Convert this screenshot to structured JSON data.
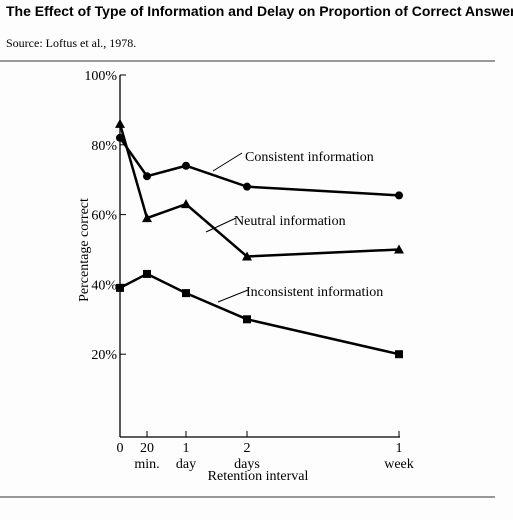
{
  "chart_data": {
    "type": "line",
    "title": "The Effect of Type of Information and Delay on Proportion of Correct Answers.",
    "subtitle": "Source: Loftus et al., 1978.",
    "x_label": "Retention interval",
    "y_label": "Percentage correct",
    "categories": [
      "0",
      "20 min.",
      "1 day",
      "2 days",
      "1 week"
    ],
    "ylim": [
      0,
      100
    ],
    "yticks": [
      {
        "value": 20,
        "label": "20%"
      },
      {
        "value": 40,
        "label": "40%"
      },
      {
        "value": 60,
        "label": "60%"
      },
      {
        "value": 80,
        "label": "80%"
      },
      {
        "value": 100,
        "label": "100%"
      }
    ],
    "series": [
      {
        "name": "Consistent information",
        "color": "#000000",
        "marker": "circle",
        "values": [
          82,
          71,
          74,
          68,
          65.5
        ]
      },
      {
        "name": "Neutral information",
        "color": "#000000",
        "marker": "triangle",
        "values": [
          86,
          59,
          63,
          48,
          50
        ]
      },
      {
        "name": "Inconsistent information",
        "color": "#000000",
        "marker": "square",
        "values": [
          39,
          43,
          37.5,
          30,
          20
        ]
      }
    ]
  }
}
